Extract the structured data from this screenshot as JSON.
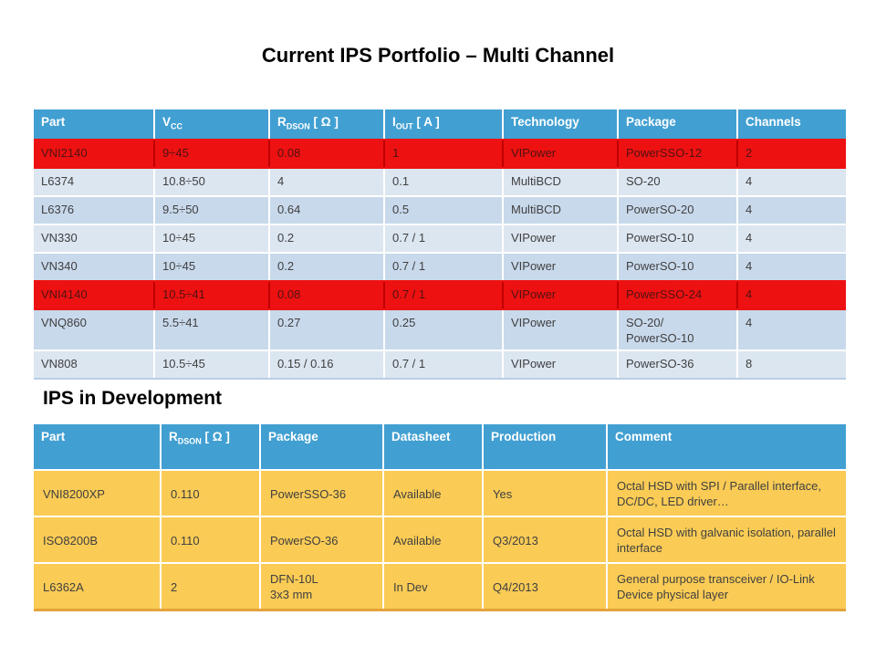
{
  "title": "Current IPS Portfolio – Multi Channel",
  "section_title": "IPS in Development",
  "colors": {
    "header_blue": "#41A0D1",
    "red": "#EE1111",
    "red_divider": "#C00000",
    "red_row_text": "#501212",
    "row_light": "#DCE6F1",
    "row_dark": "#C9D9EC",
    "yellow": "#FBCC55",
    "gold_border": "#E5A33C",
    "portfolio_bottom": "#B9CDE5",
    "table_text": "#404040"
  },
  "portfolio_table": {
    "headers": [
      {
        "text": "Part"
      },
      {
        "base": "V",
        "sub": "CC"
      },
      {
        "base": "R",
        "sub": "DSON",
        "unit": "[ Ω ]"
      },
      {
        "base": "I",
        "sub": "OUT",
        "unit": "[ A ]"
      },
      {
        "text": "Technology"
      },
      {
        "text": "Package"
      },
      {
        "text": "Channels"
      }
    ],
    "rows": [
      {
        "style": "red",
        "cells": [
          "VNI2140",
          "9÷45",
          "0.08",
          "1",
          "VIPower",
          "PowerSSO-12",
          "2"
        ]
      },
      {
        "style": "light",
        "cells": [
          "L6374",
          "10.8÷50",
          "4",
          "0.1",
          "MultiBCD",
          "SO-20",
          "4"
        ]
      },
      {
        "style": "dark",
        "cells": [
          "L6376",
          "9.5÷50",
          "0.64",
          "0.5",
          "MultiBCD",
          "PowerSO-20",
          "4"
        ]
      },
      {
        "style": "light",
        "cells": [
          "VN330",
          "10÷45",
          "0.2",
          "0.7 / 1",
          "VIPower",
          "PowerSO-10",
          "4"
        ]
      },
      {
        "style": "dark",
        "cells": [
          "VN340",
          "10÷45",
          "0.2",
          "0.7 / 1",
          "VIPower",
          "PowerSO-10",
          "4"
        ]
      },
      {
        "style": "red",
        "cells": [
          "VNI4140",
          "10.5÷41",
          "0.08",
          "0.7 / 1",
          "VIPower",
          "PowerSSO-24",
          "4"
        ]
      },
      {
        "style": "dark",
        "cells": [
          "VNQ860",
          "5.5÷41",
          "0.27",
          "0.25",
          "VIPower",
          "SO-20/\nPowerSO-10",
          "4"
        ]
      },
      {
        "style": "light",
        "cells": [
          "VN808",
          "10.5÷45",
          "0.15 / 0.16",
          "0.7 / 1",
          "VIPower",
          "PowerSO-36",
          "8"
        ]
      }
    ]
  },
  "development_table": {
    "headers": [
      {
        "text": "Part"
      },
      {
        "base": "R",
        "sub": "DSON",
        "unit": "[ Ω ]"
      },
      {
        "text": "Package"
      },
      {
        "text": "Datasheet"
      },
      {
        "text": "Production"
      },
      {
        "text": "Comment"
      }
    ],
    "rows": [
      {
        "style": "yellow",
        "cells": [
          "VNI8200XP",
          "0.110",
          "PowerSSO-36",
          "Available",
          "Yes",
          "Octal HSD with SPI / Parallel interface, DC/DC, LED driver…"
        ]
      },
      {
        "style": "yellow",
        "cells": [
          "ISO8200B",
          "0.110",
          "PowerSO-36",
          "Available",
          "Q3/2013",
          "Octal HSD with galvanic isolation, parallel interface"
        ]
      },
      {
        "style": "yellow",
        "cells": [
          "L6362A",
          "2",
          "DFN-10L\n3x3 mm",
          "In Dev",
          "Q4/2013",
          "General purpose transceiver / IO-Link Device physical layer"
        ]
      }
    ]
  }
}
